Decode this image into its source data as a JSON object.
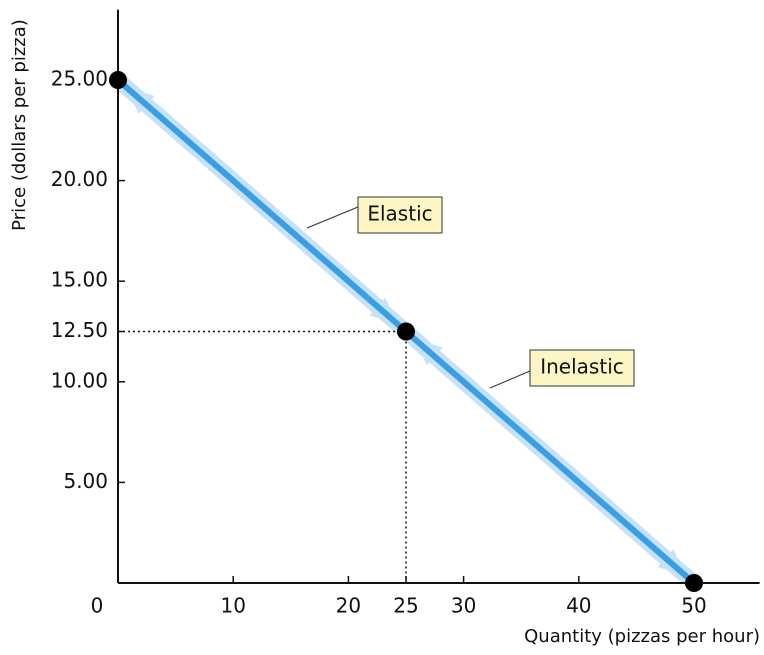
{
  "chart_data": {
    "type": "line",
    "x_label": "Quantity (pizzas per hour)",
    "y_label": "Price (dollars per pizza)",
    "x": [
      0,
      25,
      50
    ],
    "series": [
      {
        "color": "#3a9ee4",
        "values": [
          25,
          12.5,
          0
        ]
      }
    ],
    "xlim": [
      0,
      55
    ],
    "ylim": [
      0,
      28.5
    ],
    "xticks": [
      0,
      10,
      20,
      25,
      30,
      40,
      50
    ],
    "yticks": [
      {
        "value": 5,
        "label": "5.00"
      },
      {
        "value": 10,
        "label": "10.00"
      },
      {
        "value": 12.5,
        "label": "12.50"
      },
      {
        "value": 15,
        "label": "15.00"
      },
      {
        "value": 20,
        "label": "20.00"
      },
      {
        "value": 25,
        "label": "25.00"
      }
    ],
    "annotations": [
      "Elastic",
      "Inelastic"
    ]
  }
}
